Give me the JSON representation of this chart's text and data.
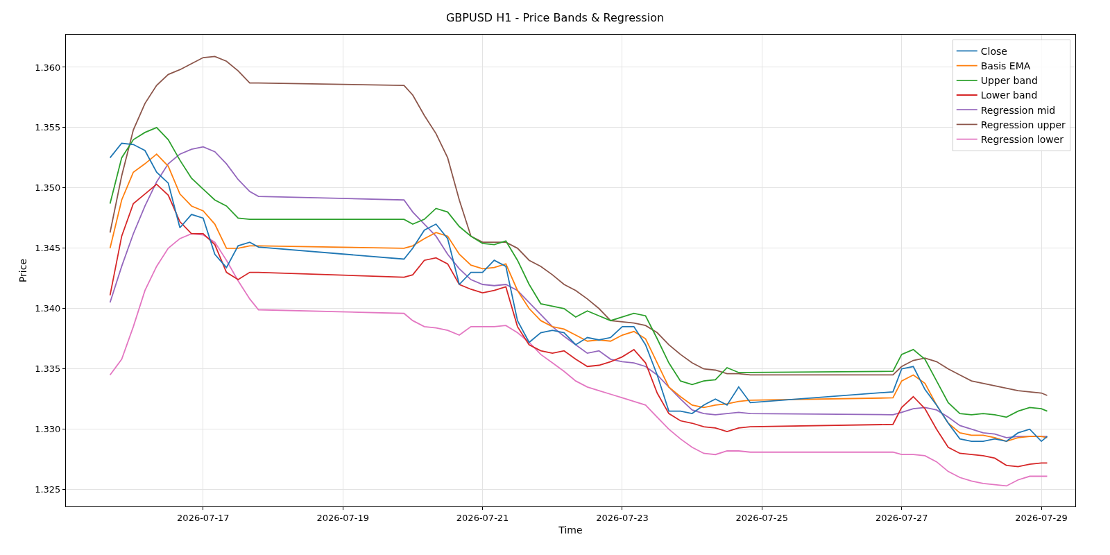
{
  "chart_data": {
    "type": "line",
    "title": "GBPUSD H1 - Price Bands & Regression",
    "xlabel": "Time",
    "ylabel": "Price",
    "x": [
      "2026-07-15T16:00",
      "2026-07-15T20:00",
      "2026-07-16T00:00",
      "2026-07-16T04:00",
      "2026-07-16T08:00",
      "2026-07-16T12:00",
      "2026-07-16T16:00",
      "2026-07-16T20:00",
      "2026-07-17T00:00",
      "2026-07-17T04:00",
      "2026-07-17T08:00",
      "2026-07-17T12:00",
      "2026-07-17T16:00",
      "2026-07-17T19:00",
      "2026-07-19T21:00",
      "2026-07-20T00:00",
      "2026-07-20T04:00",
      "2026-07-20T08:00",
      "2026-07-20T12:00",
      "2026-07-20T16:00",
      "2026-07-20T20:00",
      "2026-07-21T00:00",
      "2026-07-21T04:00",
      "2026-07-21T08:00",
      "2026-07-21T12:00",
      "2026-07-21T16:00",
      "2026-07-21T20:00",
      "2026-07-22T00:00",
      "2026-07-22T04:00",
      "2026-07-22T08:00",
      "2026-07-22T12:00",
      "2026-07-22T16:00",
      "2026-07-22T20:00",
      "2026-07-23T00:00",
      "2026-07-23T04:00",
      "2026-07-23T08:00",
      "2026-07-23T12:00",
      "2026-07-23T16:00",
      "2026-07-23T20:00",
      "2026-07-24T00:00",
      "2026-07-24T04:00",
      "2026-07-24T08:00",
      "2026-07-24T12:00",
      "2026-07-24T16:00",
      "2026-07-24T20:00",
      "2026-07-26T21:00",
      "2026-07-27T00:00",
      "2026-07-27T04:00",
      "2026-07-27T08:00",
      "2026-07-27T12:00",
      "2026-07-27T16:00",
      "2026-07-27T20:00",
      "2026-07-28T00:00",
      "2026-07-28T04:00",
      "2026-07-28T08:00",
      "2026-07-28T12:00",
      "2026-07-28T16:00",
      "2026-07-28T20:00",
      "2026-07-29T00:00",
      "2026-07-29T02:00"
    ],
    "series": [
      {
        "name": "Close",
        "color": "#1f77b4",
        "values": [
          1.3525,
          1.3537,
          1.3536,
          1.3531,
          1.3513,
          1.3504,
          1.3467,
          1.3478,
          1.3475,
          1.3445,
          1.3434,
          1.3452,
          1.3455,
          1.3451,
          1.3441,
          1.345,
          1.3465,
          1.347,
          1.3458,
          1.342,
          1.343,
          1.343,
          1.344,
          1.3435,
          1.339,
          1.3372,
          1.338,
          1.3382,
          1.338,
          1.337,
          1.3376,
          1.3374,
          1.3376,
          1.3385,
          1.3385,
          1.337,
          1.3345,
          1.3315,
          1.3315,
          1.3313,
          1.332,
          1.3325,
          1.332,
          1.3335,
          1.3322,
          1.3331,
          1.335,
          1.3352,
          1.3333,
          1.332,
          1.3305,
          1.3292,
          1.329,
          1.329,
          1.3292,
          1.329,
          1.3297,
          1.33,
          1.329,
          1.3294
        ]
      },
      {
        "name": "Basis EMA",
        "color": "#ff7f0e",
        "values": [
          1.345,
          1.349,
          1.3513,
          1.352,
          1.3528,
          1.3518,
          1.3495,
          1.3485,
          1.3481,
          1.347,
          1.345,
          1.345,
          1.3452,
          1.3452,
          1.345,
          1.3452,
          1.3458,
          1.3463,
          1.346,
          1.3445,
          1.3436,
          1.3433,
          1.3434,
          1.3437,
          1.3415,
          1.34,
          1.339,
          1.3385,
          1.3383,
          1.3378,
          1.3373,
          1.3374,
          1.3373,
          1.3378,
          1.3381,
          1.3375,
          1.3355,
          1.3335,
          1.3327,
          1.332,
          1.3318,
          1.332,
          1.3321,
          1.3323,
          1.3324,
          1.3326,
          1.334,
          1.3345,
          1.3338,
          1.332,
          1.3305,
          1.3297,
          1.3295,
          1.3295,
          1.3293,
          1.329,
          1.3293,
          1.3294,
          1.3294,
          1.3293
        ]
      },
      {
        "name": "Upper band",
        "color": "#2ca02c",
        "values": [
          1.3487,
          1.3525,
          1.354,
          1.3546,
          1.355,
          1.354,
          1.3523,
          1.3508,
          1.3499,
          1.349,
          1.3485,
          1.3475,
          1.3474,
          1.3474,
          1.3474,
          1.347,
          1.3474,
          1.3483,
          1.348,
          1.3468,
          1.346,
          1.3454,
          1.3453,
          1.3456,
          1.344,
          1.342,
          1.3404,
          1.3402,
          1.34,
          1.3393,
          1.3398,
          1.3394,
          1.339,
          1.3393,
          1.3396,
          1.3394,
          1.3375,
          1.3355,
          1.334,
          1.3337,
          1.334,
          1.3341,
          1.3351,
          1.3347,
          1.3347,
          1.3348,
          1.3362,
          1.3366,
          1.3358,
          1.334,
          1.3322,
          1.3313,
          1.3312,
          1.3313,
          1.3312,
          1.331,
          1.3315,
          1.3318,
          1.3317,
          1.3315
        ]
      },
      {
        "name": "Lower band",
        "color": "#d62728",
        "values": [
          1.3411,
          1.346,
          1.3487,
          1.3495,
          1.3503,
          1.3494,
          1.3472,
          1.3462,
          1.3462,
          1.3453,
          1.343,
          1.3424,
          1.343,
          1.343,
          1.3426,
          1.3428,
          1.344,
          1.3442,
          1.3437,
          1.342,
          1.3416,
          1.3413,
          1.3415,
          1.3418,
          1.3385,
          1.337,
          1.3365,
          1.3363,
          1.3365,
          1.3358,
          1.3352,
          1.3353,
          1.3356,
          1.336,
          1.3366,
          1.3355,
          1.333,
          1.3313,
          1.3307,
          1.3305,
          1.3302,
          1.3301,
          1.3298,
          1.3301,
          1.3302,
          1.3304,
          1.3318,
          1.3327,
          1.3317,
          1.33,
          1.3285,
          1.328,
          1.3279,
          1.3278,
          1.3276,
          1.327,
          1.3269,
          1.3271,
          1.3272,
          1.3272
        ]
      },
      {
        "name": "Regression mid",
        "color": "#9467bd",
        "values": [
          1.3405,
          1.3435,
          1.3462,
          1.3485,
          1.3505,
          1.352,
          1.3528,
          1.3532,
          1.3534,
          1.353,
          1.352,
          1.3507,
          1.3497,
          1.3493,
          1.349,
          1.348,
          1.347,
          1.346,
          1.3445,
          1.3433,
          1.3424,
          1.342,
          1.3419,
          1.342,
          1.3415,
          1.3405,
          1.3395,
          1.3385,
          1.3377,
          1.337,
          1.3363,
          1.3365,
          1.3358,
          1.3356,
          1.3355,
          1.3352,
          1.3345,
          1.3335,
          1.3325,
          1.3316,
          1.3313,
          1.3312,
          1.3313,
          1.3314,
          1.3313,
          1.3312,
          1.3314,
          1.3317,
          1.3318,
          1.3316,
          1.331,
          1.3303,
          1.33,
          1.3297,
          1.3296,
          1.3293,
          1.3294,
          1.3294,
          1.3294,
          1.3294
        ]
      },
      {
        "name": "Regression upper",
        "color": "#8c564b",
        "values": [
          1.3463,
          1.351,
          1.3548,
          1.357,
          1.3585,
          1.3594,
          1.3598,
          1.3603,
          1.3608,
          1.3609,
          1.3605,
          1.3597,
          1.3587,
          1.3587,
          1.3585,
          1.3577,
          1.356,
          1.3545,
          1.3525,
          1.349,
          1.346,
          1.3455,
          1.3455,
          1.3455,
          1.345,
          1.344,
          1.3435,
          1.3428,
          1.342,
          1.3415,
          1.3408,
          1.34,
          1.339,
          1.3389,
          1.3388,
          1.3386,
          1.338,
          1.337,
          1.3362,
          1.3355,
          1.335,
          1.3349,
          1.3346,
          1.3346,
          1.3345,
          1.3345,
          1.3352,
          1.3357,
          1.3359,
          1.3356,
          1.335,
          1.3345,
          1.334,
          1.3338,
          1.3336,
          1.3334,
          1.3332,
          1.3331,
          1.333,
          1.3328
        ]
      },
      {
        "name": "Regression lower",
        "color": "#e377c2",
        "values": [
          1.3345,
          1.3358,
          1.3385,
          1.3415,
          1.3435,
          1.345,
          1.3458,
          1.3462,
          1.3461,
          1.3455,
          1.344,
          1.3423,
          1.3408,
          1.3399,
          1.3396,
          1.339,
          1.3385,
          1.3384,
          1.3382,
          1.3378,
          1.3385,
          1.3385,
          1.3385,
          1.3386,
          1.338,
          1.3372,
          1.3362,
          1.3355,
          1.3348,
          1.334,
          1.3335,
          1.3332,
          1.3329,
          1.3326,
          1.3323,
          1.332,
          1.331,
          1.33,
          1.3292,
          1.3285,
          1.328,
          1.3279,
          1.3282,
          1.3282,
          1.3281,
          1.3281,
          1.3279,
          1.3279,
          1.3278,
          1.3273,
          1.3265,
          1.326,
          1.3257,
          1.3255,
          1.3254,
          1.3253,
          1.3258,
          1.3261,
          1.3261,
          1.3261
        ]
      }
    ],
    "xlim": [
      "2026-07-15T00:50",
      "2026-07-29T11:40"
    ],
    "xticks": [
      "2026-07-17",
      "2026-07-19",
      "2026-07-21",
      "2026-07-23",
      "2026-07-25",
      "2026-07-27",
      "2026-07-29"
    ],
    "ylim": [
      1.3236,
      1.3627
    ],
    "yticks": [
      1.325,
      {
        "value": 1.33,
        "label": "1.330"
      },
      1.335,
      {
        "value": 1.34,
        "label": "1.340"
      },
      1.345,
      {
        "value": 1.35,
        "label": "1.350"
      },
      1.355,
      {
        "value": 1.36,
        "label": "1.360"
      }
    ],
    "grid": true,
    "legend": "top right",
    "marker": "none",
    "line_style": "solid"
  }
}
